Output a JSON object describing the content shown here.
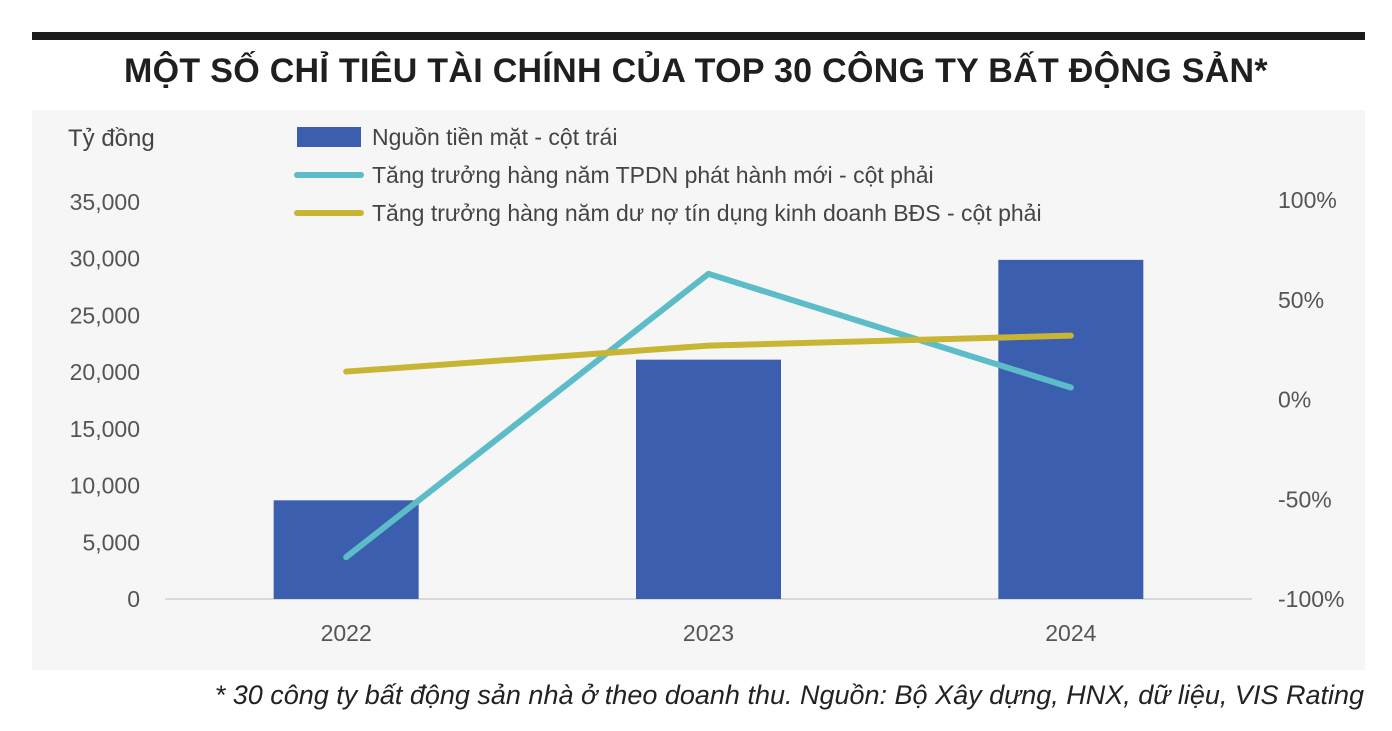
{
  "title": "MỘT SỐ CHỈ TIÊU TÀI CHÍNH CỦA TOP 30 CÔNG TY BẤT ĐỘNG SẢN*",
  "footnote": "* 30 công ty bất động sản nhà ở theo doanh thu. Nguồn: Bộ Xây dựng, HNX, dữ liệu, VIS Rating",
  "chart_data": {
    "type": "bar",
    "categories": [
      "2022",
      "2023",
      "2024"
    ],
    "ylabel": "Tỷ đồng",
    "ylim": [
      0,
      35000
    ],
    "y2lim": [
      -100,
      100
    ],
    "y_ticks": [
      "0",
      "5,000",
      "10,000",
      "15,000",
      "20,000",
      "25,000",
      "30,000",
      "35,000"
    ],
    "y2_ticks": [
      "-100%",
      "-50%",
      "0%",
      "50%",
      "100%"
    ],
    "legend_position": "top",
    "grid": false,
    "series": [
      {
        "name": "Nguồn tiền mặt - cột trái",
        "type": "bar",
        "axis": "left",
        "color": "#3b5fae",
        "values": [
          8700,
          21100,
          29900
        ]
      },
      {
        "name": "Tăng trưởng hàng năm TPDN phát hành mới - cột phải",
        "type": "line",
        "axis": "right",
        "color": "#5cbcc8",
        "values": [
          -79,
          63,
          6
        ]
      },
      {
        "name": "Tăng trưởng hàng năm dư nợ tín dụng kinh doanh BĐS - cột phải",
        "type": "line",
        "axis": "right",
        "color": "#c9b534",
        "values": [
          14,
          27,
          32
        ]
      }
    ]
  }
}
